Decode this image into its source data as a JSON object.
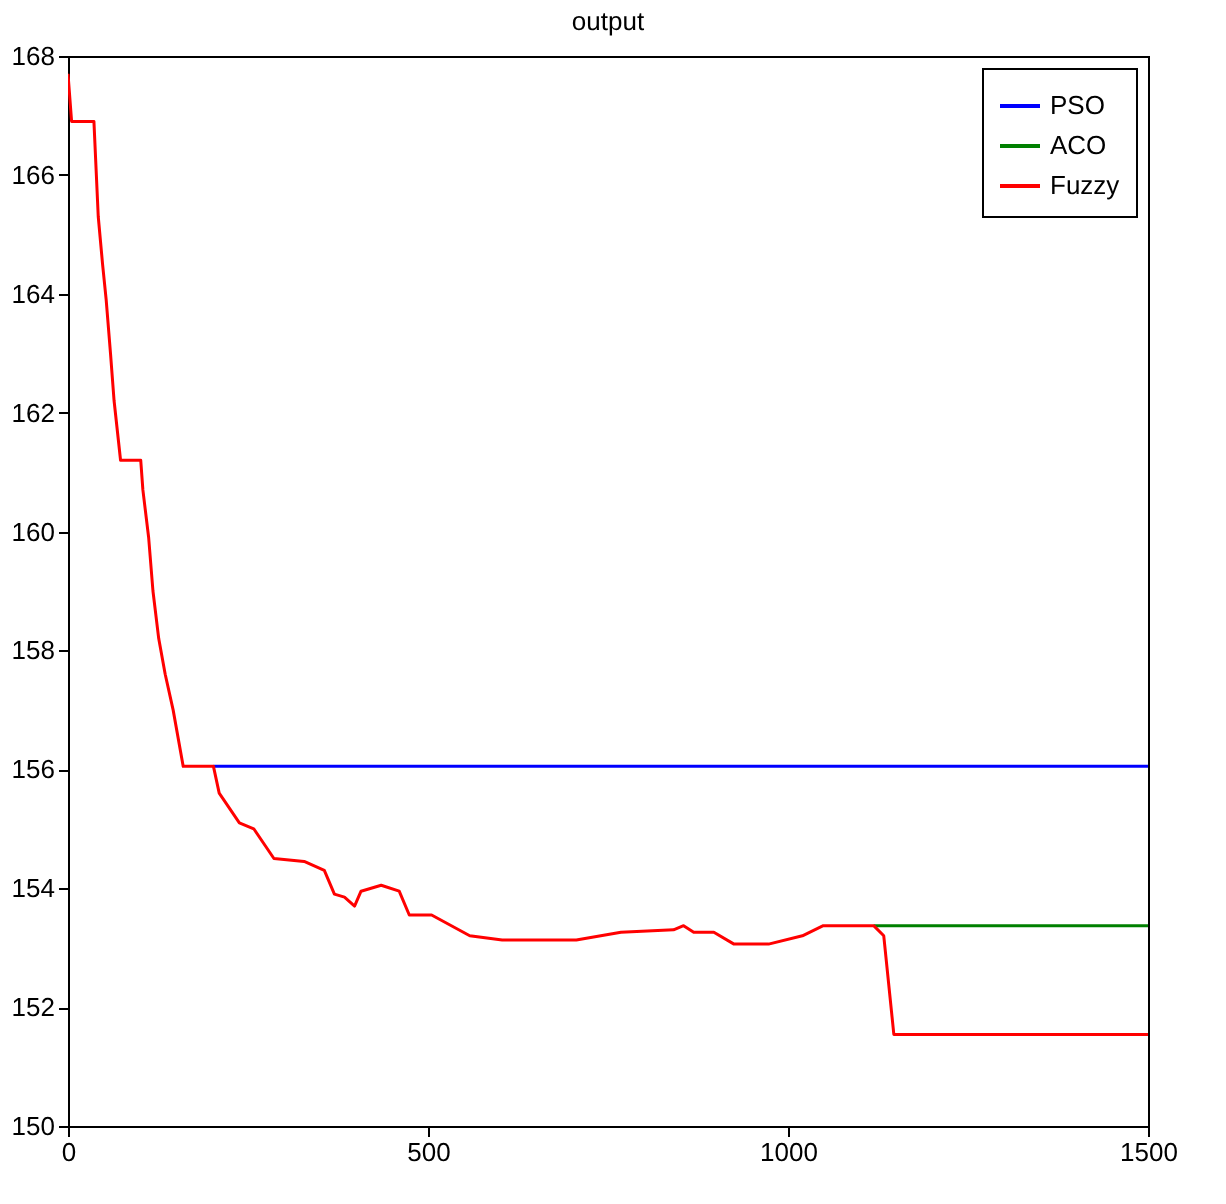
{
  "chart_data": {
    "type": "line",
    "title": "output",
    "xlim": [
      0,
      1500
    ],
    "xticks": [
      0,
      500,
      1000,
      1500
    ],
    "ylim": [
      150,
      168
    ],
    "yticks": [
      150,
      152,
      154,
      156,
      158,
      160,
      162,
      164,
      166,
      168
    ],
    "grid": false,
    "legend": "top right",
    "line_style": "solid",
    "marker": "none",
    "series": [
      {
        "name": "PSO",
        "color": "#0000ff",
        "x": [
          202,
          1500
        ],
        "values": [
          156.05,
          156.05
        ]
      },
      {
        "name": "ACO",
        "color": "#008000",
        "x": [
          1119,
          1500
        ],
        "values": [
          153.37,
          153.37
        ]
      },
      {
        "name": "Fuzzy",
        "color": "#ff0000",
        "x": [
          0,
          5,
          36,
          39,
          42,
          48,
          53,
          59,
          64,
          73,
          101,
          104,
          112,
          118,
          126,
          135,
          146,
          160,
          202,
          210,
          238,
          258,
          286,
          328,
          356,
          370,
          384,
          398,
          407,
          435,
          460,
          474,
          505,
          558,
          603,
          706,
          768,
          841,
          855,
          869,
          897,
          925,
          973,
          1020,
          1049,
          1119,
          1133,
          1147,
          1500
        ],
        "values": [
          167.7,
          166.9,
          166.9,
          166.1,
          165.3,
          164.5,
          163.9,
          163.0,
          162.2,
          161.2,
          161.2,
          160.7,
          159.9,
          159.0,
          158.2,
          157.6,
          157.0,
          156.05,
          156.05,
          155.6,
          155.1,
          155.0,
          154.5,
          154.45,
          154.3,
          153.9,
          153.85,
          153.7,
          153.95,
          154.05,
          153.95,
          153.55,
          153.55,
          153.2,
          153.13,
          153.13,
          153.26,
          153.3,
          153.37,
          153.26,
          153.26,
          153.06,
          153.06,
          153.2,
          153.37,
          153.37,
          153.2,
          151.54,
          151.54
        ]
      }
    ]
  }
}
